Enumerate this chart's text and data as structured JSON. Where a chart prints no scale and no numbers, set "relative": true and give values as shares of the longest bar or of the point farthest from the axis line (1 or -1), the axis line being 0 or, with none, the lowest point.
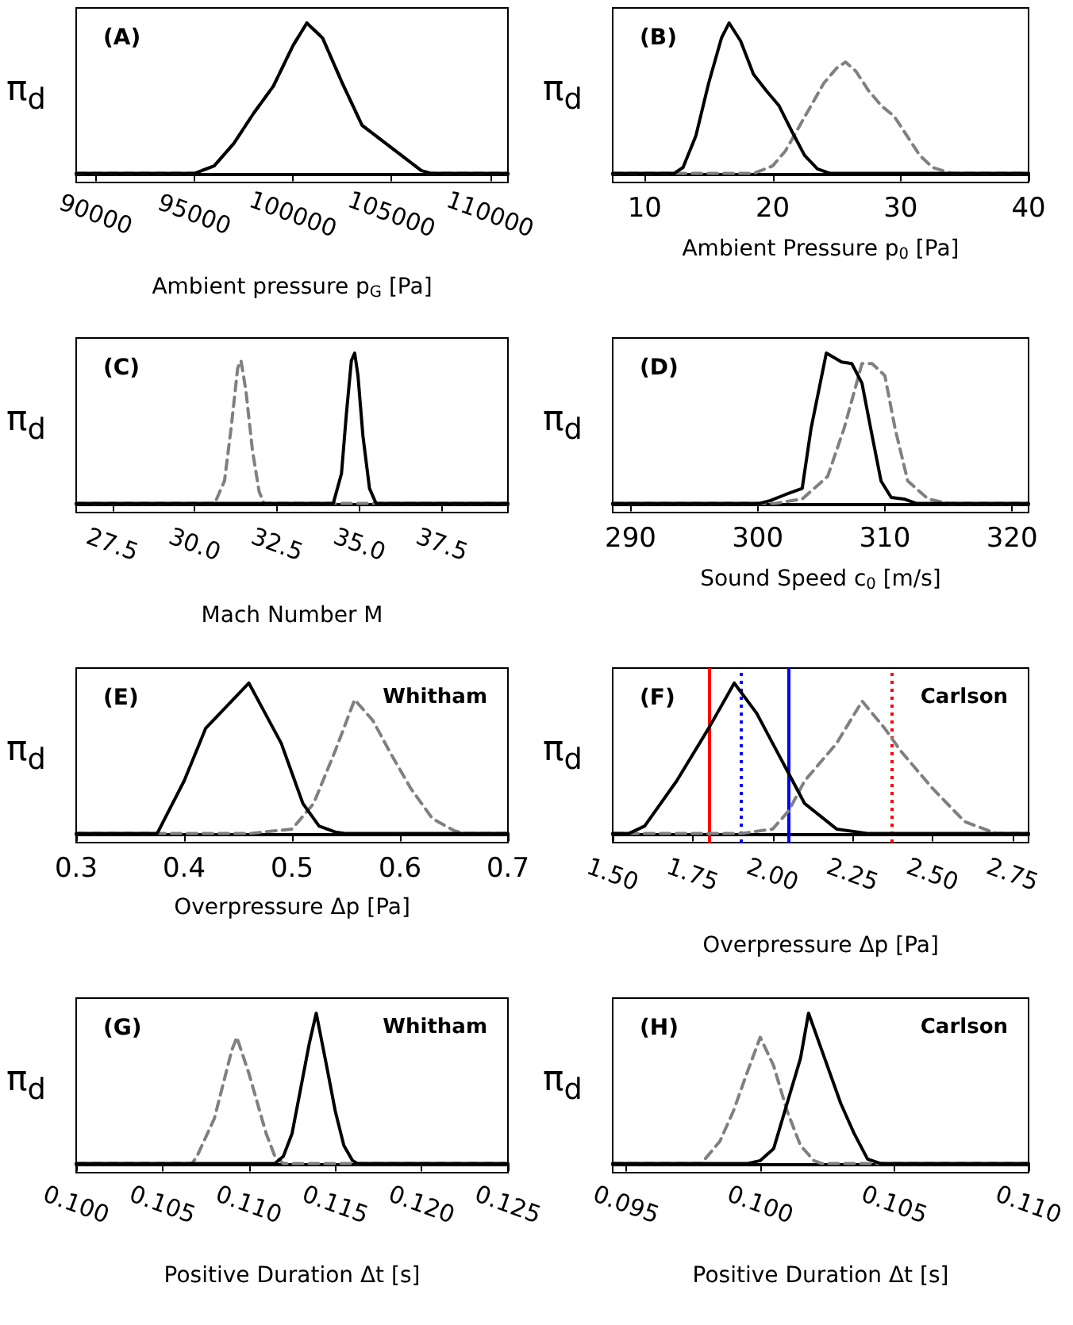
{
  "chart_data": [
    {
      "type": "line",
      "title": "(A)",
      "xlabel": "Ambient pressure p$_{G}$ [Pa]",
      "ylabel": "π$_{d}$",
      "relative": true,
      "marker": "none",
      "xlim": [
        89000,
        110900
      ],
      "xticks": [
        90000,
        95000,
        100000,
        105000,
        110000
      ],
      "series": [
        {
          "color": "#000000",
          "line_style": "solid",
          "x": [
            89000,
            95000,
            96000,
            97000,
            98000,
            99000,
            100000,
            100700,
            101500,
            102500,
            103500,
            104500,
            105500,
            106500,
            107000,
            110900
          ],
          "values": [
            0,
            0,
            0.05,
            0.2,
            0.4,
            0.58,
            0.85,
            1.0,
            0.9,
            0.6,
            0.32,
            0.22,
            0.12,
            0.02,
            0,
            0
          ]
        },
        {
          "color": "#808080",
          "line_style": "dashed",
          "x": [
            89000,
            95000,
            96000,
            97000,
            98000,
            99000,
            100000,
            100700,
            101500,
            102500,
            103500,
            104500,
            105500,
            106500,
            107000,
            110900
          ],
          "values": [
            0,
            0,
            0.05,
            0.2,
            0.4,
            0.58,
            0.85,
            1.0,
            0.9,
            0.6,
            0.32,
            0.22,
            0.12,
            0.02,
            0,
            0
          ]
        }
      ]
    },
    {
      "type": "line",
      "title": "(B)",
      "xlabel": "Ambient Pressure p$_{0}$ [Pa]",
      "ylabel": "π$_{d}$",
      "relative": true,
      "marker": "none",
      "xlim": [
        7.5,
        40
      ],
      "xticks": [
        10,
        20,
        30,
        40
      ],
      "series": [
        {
          "color": "#000000",
          "line_style": "solid",
          "x": [
            7.5,
            12.3,
            13,
            14,
            15,
            16,
            16.6,
            17.5,
            18.5,
            19.5,
            20.5,
            21.5,
            22.5,
            23.5,
            24.5,
            40
          ],
          "values": [
            0,
            0,
            0.04,
            0.25,
            0.6,
            0.9,
            1.0,
            0.88,
            0.66,
            0.55,
            0.45,
            0.28,
            0.12,
            0.03,
            0,
            0
          ]
        },
        {
          "color": "#808080",
          "line_style": "dashed",
          "x": [
            7.5,
            18.5,
            20,
            21,
            22,
            23,
            24,
            25,
            25.7,
            26.5,
            27.5,
            28.5,
            29.5,
            30.5,
            31.5,
            32.5,
            34,
            40
          ],
          "values": [
            0,
            0,
            0.05,
            0.15,
            0.3,
            0.45,
            0.6,
            0.7,
            0.74,
            0.68,
            0.55,
            0.45,
            0.38,
            0.25,
            0.12,
            0.04,
            0,
            0
          ]
        }
      ]
    },
    {
      "type": "line",
      "title": "(C)",
      "xlabel": "Mach Number M",
      "ylabel": "π$_{d}$",
      "relative": true,
      "marker": "none",
      "xlim": [
        26.4,
        39.5
      ],
      "xticks": [
        27.5,
        {
          "value": 30,
          "label": "30.0"
        },
        32.5,
        {
          "value": 35,
          "label": "35.0"
        },
        37.5
      ],
      "series": [
        {
          "color": "#000000",
          "line_style": "solid",
          "x": [
            26.4,
            34.2,
            34.45,
            34.6,
            34.75,
            34.85,
            34.95,
            35.1,
            35.3,
            35.5,
            39.5
          ],
          "values": [
            0,
            0,
            0.2,
            0.6,
            0.95,
            1.0,
            0.85,
            0.45,
            0.1,
            0,
            0
          ]
        },
        {
          "color": "#808080",
          "line_style": "dashed",
          "x": [
            26.4,
            30.6,
            30.9,
            31.1,
            31.3,
            31.4,
            31.55,
            31.75,
            31.95,
            32.1,
            39.5
          ],
          "values": [
            0,
            0,
            0.15,
            0.5,
            0.9,
            0.95,
            0.75,
            0.35,
            0.08,
            0,
            0
          ]
        }
      ]
    },
    {
      "type": "line",
      "title": "(D)",
      "xlabel": "Sound Speed c$_{0}$ [m/s]",
      "ylabel": "π$_{d}$",
      "relative": true,
      "marker": "none",
      "xlim": [
        288.6,
        321.3
      ],
      "xticks": [
        290,
        300,
        310,
        320
      ],
      "series": [
        {
          "color": "#000000",
          "line_style": "solid",
          "x": [
            288.6,
            300.1,
            301,
            302.2,
            303.5,
            304.2,
            305.4,
            306.6,
            307.4,
            308.2,
            309,
            309.7,
            310.5,
            311.5,
            312.5,
            321.3
          ],
          "values": [
            0,
            0,
            0.02,
            0.06,
            0.1,
            0.5,
            1.0,
            0.94,
            0.93,
            0.8,
            0.45,
            0.15,
            0.04,
            0.03,
            0,
            0
          ]
        },
        {
          "color": "#808080",
          "line_style": "dashed",
          "x": [
            288.6,
            301.3,
            303.5,
            305.5,
            306.8,
            308.2,
            309,
            310,
            310.8,
            311.8,
            313.4,
            315,
            321.3
          ],
          "values": [
            0,
            0,
            0.03,
            0.18,
            0.5,
            0.93,
            0.93,
            0.85,
            0.5,
            0.15,
            0.03,
            0,
            0
          ]
        }
      ]
    },
    {
      "type": "line",
      "title": "(E)",
      "annotations": [
        "Whitham"
      ],
      "xlabel": "Overpressure Δp [Pa]",
      "ylabel": "π$_{d}$",
      "relative": true,
      "marker": "none",
      "xlim": [
        0.3,
        0.7
      ],
      "xticks": [
        0.3,
        0.4,
        0.5,
        0.6,
        0.7
      ],
      "series": [
        {
          "color": "#000000",
          "line_style": "solid",
          "x": [
            0.3,
            0.375,
            0.4,
            0.42,
            0.44,
            0.46,
            0.475,
            0.49,
            0.5,
            0.51,
            0.525,
            0.54,
            0.55,
            0.7
          ],
          "values": [
            0,
            0,
            0.35,
            0.7,
            0.85,
            1.0,
            0.8,
            0.6,
            0.4,
            0.2,
            0.05,
            0.01,
            0,
            0
          ]
        },
        {
          "color": "#808080",
          "line_style": "dashed",
          "x": [
            0.3,
            0.46,
            0.5,
            0.52,
            0.54,
            0.558,
            0.575,
            0.59,
            0.61,
            0.63,
            0.65,
            0.66,
            0.7
          ],
          "values": [
            0,
            0,
            0.03,
            0.2,
            0.55,
            0.89,
            0.75,
            0.55,
            0.3,
            0.1,
            0.02,
            0,
            0
          ]
        }
      ]
    },
    {
      "type": "line",
      "title": "(F)",
      "annotations": [
        "Carlson"
      ],
      "xlabel": "Overpressure Δp [Pa]",
      "ylabel": "π$_{d}$",
      "relative": true,
      "marker": "none",
      "xlim": [
        1.5,
        2.8
      ],
      "xticks": [
        {
          "value": 1.5,
          "label": "1.50"
        },
        1.75,
        {
          "value": 2,
          "label": "2.00"
        },
        2.25,
        {
          "value": 2.5,
          "label": "2.50"
        },
        2.75
      ],
      "ref_lines": [
        {
          "axis": "x",
          "value": 1.8,
          "color": "#ff0000",
          "line_style": "solid"
        },
        {
          "axis": "x",
          "value": 1.9,
          "color": "#0000ff",
          "line_style": "dotted"
        },
        {
          "axis": "x",
          "value": 2.05,
          "color": "#0000ff",
          "line_style": "solid"
        },
        {
          "axis": "x",
          "value": 2.37,
          "color": "#ff0000",
          "line_style": "dotted"
        }
      ],
      "series": [
        {
          "color": "#000000",
          "line_style": "solid",
          "x": [
            1.5,
            1.55,
            1.6,
            1.7,
            1.8,
            1.88,
            1.95,
            2.0,
            2.05,
            2.1,
            2.2,
            2.3,
            2.8
          ],
          "values": [
            0,
            0,
            0.05,
            0.35,
            0.7,
            1.0,
            0.8,
            0.6,
            0.4,
            0.2,
            0.03,
            0,
            0
          ]
        },
        {
          "color": "#808080",
          "line_style": "dashed",
          "x": [
            1.5,
            1.9,
            2.0,
            2.05,
            2.1,
            2.2,
            2.28,
            2.35,
            2.4,
            2.5,
            2.6,
            2.7,
            2.8
          ],
          "values": [
            0,
            0,
            0.03,
            0.15,
            0.35,
            0.6,
            0.88,
            0.7,
            0.55,
            0.3,
            0.08,
            0,
            0
          ]
        }
      ]
    },
    {
      "type": "line",
      "title": "(G)",
      "annotations": [
        "Whitham"
      ],
      "xlabel": "Positive Duration Δt [s]",
      "ylabel": "π$_{d}$",
      "relative": true,
      "marker": "none",
      "xlim": [
        0.1,
        0.125
      ],
      "xticks": [
        {
          "value": 0.1,
          "label": "0.100"
        },
        0.105,
        {
          "value": 0.11,
          "label": "0.110"
        },
        0.115,
        {
          "value": 0.12,
          "label": "0.120"
        },
        0.125
      ],
      "series": [
        {
          "color": "#000000",
          "line_style": "solid",
          "x": [
            0.1,
            0.1115,
            0.112,
            0.1125,
            0.113,
            0.1135,
            0.1139,
            0.1145,
            0.115,
            0.1155,
            0.116,
            0.1163,
            0.125
          ],
          "values": [
            0,
            0,
            0.05,
            0.2,
            0.5,
            0.8,
            1.0,
            0.65,
            0.35,
            0.12,
            0.02,
            0,
            0
          ]
        },
        {
          "color": "#808080",
          "line_style": "dashed",
          "x": [
            0.1,
            0.1067,
            0.107,
            0.108,
            0.109,
            0.1093,
            0.11,
            0.111,
            0.1115,
            0.112,
            0.125
          ],
          "values": [
            0,
            0,
            0.05,
            0.3,
            0.75,
            0.84,
            0.6,
            0.2,
            0.05,
            0,
            0
          ]
        }
      ]
    },
    {
      "type": "line",
      "title": "(H)",
      "annotations": [
        "Carlson"
      ],
      "xlabel": "Positive Duration Δt [s]",
      "ylabel": "π$_{d}$",
      "relative": true,
      "marker": "none",
      "xlim": [
        0.0945,
        0.11
      ],
      "xticks": [
        0.095,
        {
          "value": 0.1,
          "label": "0.100"
        },
        0.105,
        {
          "value": 0.11,
          "label": "0.110"
        }
      ],
      "series": [
        {
          "color": "#000000",
          "line_style": "solid",
          "x": [
            0.0945,
            0.0995,
            0.1,
            0.1005,
            0.101,
            0.1015,
            0.1018,
            0.1023,
            0.103,
            0.1035,
            0.104,
            0.1045,
            0.11
          ],
          "values": [
            0,
            0,
            0.02,
            0.1,
            0.4,
            0.7,
            1.0,
            0.75,
            0.4,
            0.2,
            0.03,
            0,
            0
          ]
        },
        {
          "color": "#808080",
          "line_style": "dashed",
          "x": [
            0.0945,
            0.0978,
            0.0985,
            0.099,
            0.0995,
            0.1,
            0.1005,
            0.101,
            0.1015,
            0.102,
            0.1023,
            0.11
          ],
          "values": [
            0,
            0,
            0.15,
            0.35,
            0.6,
            0.84,
            0.65,
            0.35,
            0.12,
            0.02,
            0,
            0
          ]
        }
      ]
    }
  ]
}
